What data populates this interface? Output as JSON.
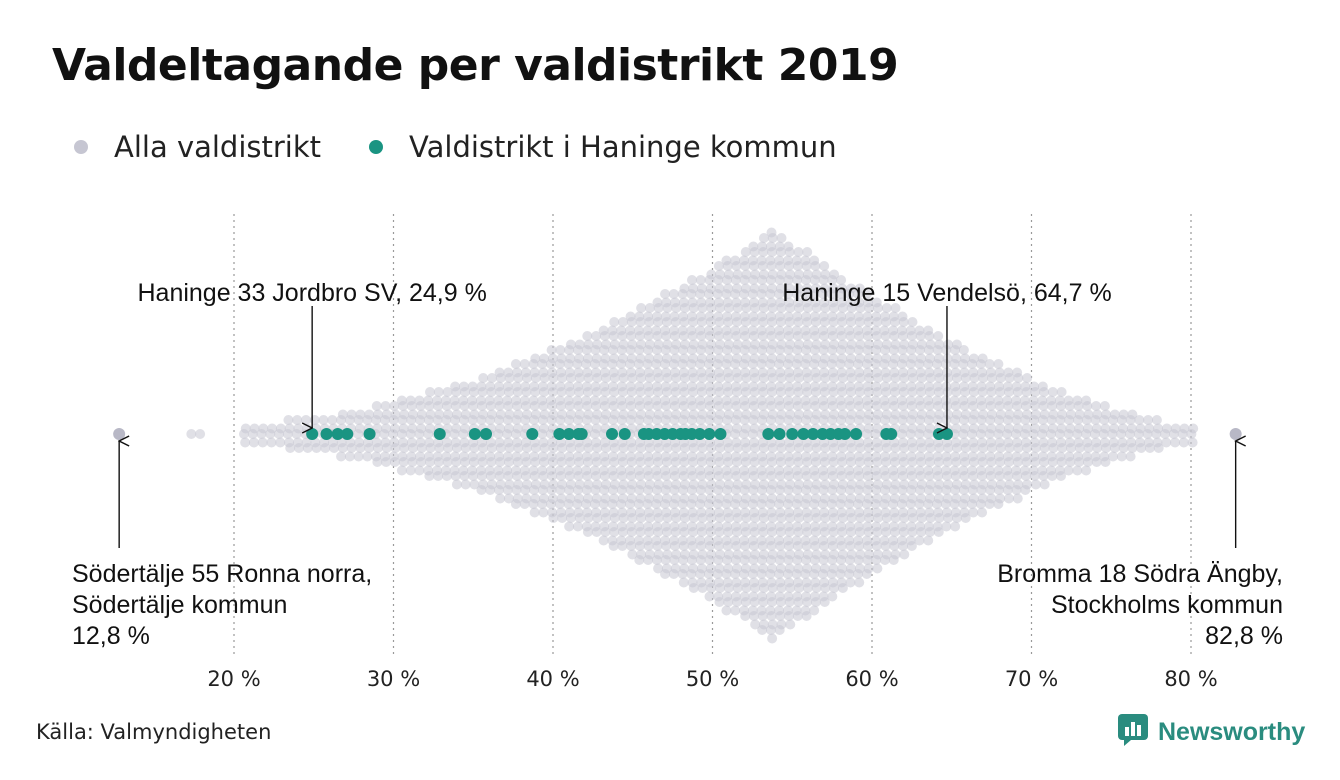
{
  "title": "Valdeltagande per valdistrikt 2019",
  "legend": [
    {
      "label": "Alla valdistrikt",
      "color": "#c6c6d2"
    },
    {
      "label": "Valdistrikt i Haninge kommun",
      "color": "#1a9482"
    }
  ],
  "source": "Källa: Valmyndigheten",
  "brand": {
    "name": "Newsworthy",
    "icon": "bar-chart-icon",
    "color": "#2a8c7f"
  },
  "chart_data": {
    "type": "scatter",
    "xlim": [
      12,
      84
    ],
    "x_ticks": [
      20,
      30,
      40,
      50,
      60,
      70,
      80
    ],
    "x_tick_labels": [
      "20 %",
      "30 %",
      "40 %",
      "50 %",
      "60 %",
      "70 %",
      "80 %"
    ],
    "grid": "vertical dotted",
    "series": [
      {
        "name": "Alla valdistrikt",
        "color": "#c6c6d2",
        "distribution": "beeswarm",
        "min": 12.8,
        "max": 82.8,
        "peak": 53.8
      },
      {
        "name": "Valdistrikt i Haninge kommun",
        "color": "#1a9482",
        "values": [
          24.9,
          25.8,
          26.5,
          27.1,
          28.5,
          32.9,
          35.1,
          35.8,
          38.7,
          40.4,
          41.0,
          41.6,
          41.8,
          43.7,
          44.5,
          45.7,
          46.0,
          46.5,
          47.0,
          47.5,
          48.0,
          48.3,
          48.7,
          49.2,
          49.8,
          50.5,
          53.5,
          54.2,
          55.0,
          55.7,
          56.3,
          56.9,
          57.4,
          57.9,
          58.3,
          59.0,
          60.9,
          61.2,
          64.2,
          64.7
        ]
      }
    ],
    "annotations": [
      {
        "lines": [
          "Haninge 33 Jordbro SV, 24,9 %"
        ],
        "value": 24.9,
        "series": "Valdistrikt i Haninge kommun"
      },
      {
        "lines": [
          "Haninge 15 Vendelsö, 64,7 %"
        ],
        "value": 64.7,
        "series": "Valdistrikt i Haninge kommun"
      },
      {
        "lines": [
          "Södertälje 55 Ronna norra,",
          "Södertälje kommun",
          "12,8 %"
        ],
        "value": 12.8,
        "series": "Alla valdistrikt"
      },
      {
        "lines": [
          "Bromma 18 Södra Ängby,",
          "Stockholms kommun",
          "82,8 %"
        ],
        "value": 82.8,
        "series": "Alla valdistrikt"
      }
    ]
  }
}
